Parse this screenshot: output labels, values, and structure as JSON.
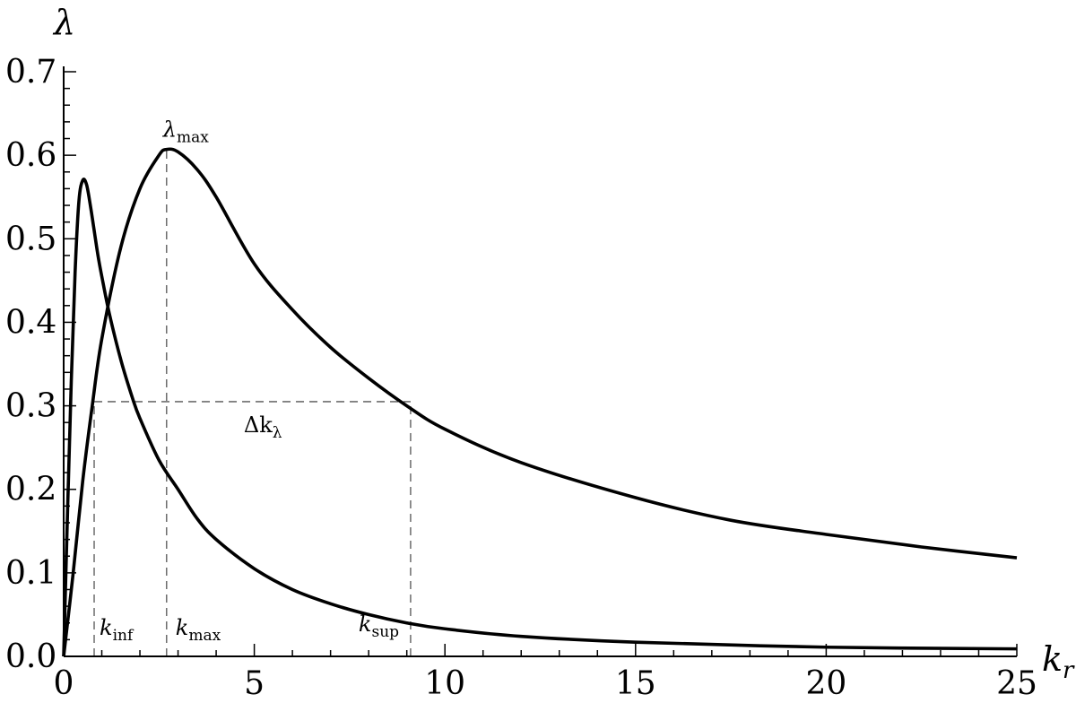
{
  "chart_data": {
    "type": "line",
    "xlabel_main": "k",
    "xlabel_sub": "r",
    "ylabel": "λ",
    "xlim": [
      0,
      25
    ],
    "ylim": [
      0,
      0.7
    ],
    "xticks": [
      0,
      5,
      10,
      15,
      20,
      25
    ],
    "xtick_labels": [
      "0",
      "5",
      "10",
      "15",
      "20",
      "25"
    ],
    "yticks": [
      0.0,
      0.1,
      0.2,
      0.3,
      0.4,
      0.5,
      0.6,
      0.7
    ],
    "ytick_labels": [
      "0.0",
      "0.1",
      "0.2",
      "0.3",
      "0.4",
      "0.5",
      "0.6",
      "0.7"
    ],
    "grid": false,
    "series": [
      {
        "x": [
          0,
          0.1,
          0.2,
          0.3,
          0.4,
          0.5,
          0.6,
          0.7,
          0.8,
          0.9,
          1.0,
          1.2,
          1.5,
          1.8,
          2.0,
          2.5,
          3.0,
          3.5,
          4.0,
          5.0,
          6.0,
          7.0,
          8.0,
          9.0,
          10.0,
          12.0,
          15.0,
          20.0,
          25.0
        ],
        "y": [
          0,
          0.17,
          0.33,
          0.46,
          0.545,
          0.57,
          0.565,
          0.54,
          0.51,
          0.48,
          0.455,
          0.41,
          0.355,
          0.31,
          0.285,
          0.235,
          0.2,
          0.165,
          0.14,
          0.105,
          0.08,
          0.063,
          0.05,
          0.04,
          0.033,
          0.024,
          0.017,
          0.011,
          0.009
        ]
      },
      {
        "x": [
          0,
          0.25,
          0.5,
          0.75,
          1.0,
          1.5,
          2.0,
          2.5,
          2.7,
          3.0,
          3.5,
          4.0,
          5.0,
          6.0,
          7.0,
          8.0,
          9.0,
          10.0,
          12.0,
          15.0,
          17.5,
          20.0,
          22.5,
          25.0
        ],
        "y": [
          0,
          0.1,
          0.21,
          0.3,
          0.38,
          0.49,
          0.56,
          0.6,
          0.607,
          0.604,
          0.583,
          0.55,
          0.47,
          0.415,
          0.37,
          0.333,
          0.3,
          0.272,
          0.232,
          0.19,
          0.163,
          0.146,
          0.131,
          0.118
        ]
      }
    ],
    "annotations": {
      "lambda_max": {
        "main": "λ",
        "sub": "max",
        "x": 2.7,
        "y": 0.607
      },
      "k_inf": {
        "main": "k",
        "sub": "inf",
        "x": 0.8
      },
      "k_max": {
        "main": "k",
        "sub": "max",
        "x": 2.7
      },
      "k_sup": {
        "main": "k",
        "sub": "sup",
        "x": 9.1
      },
      "half_level": 0.305,
      "delta_k": {
        "main": "Δk",
        "sub": "λ"
      }
    }
  }
}
